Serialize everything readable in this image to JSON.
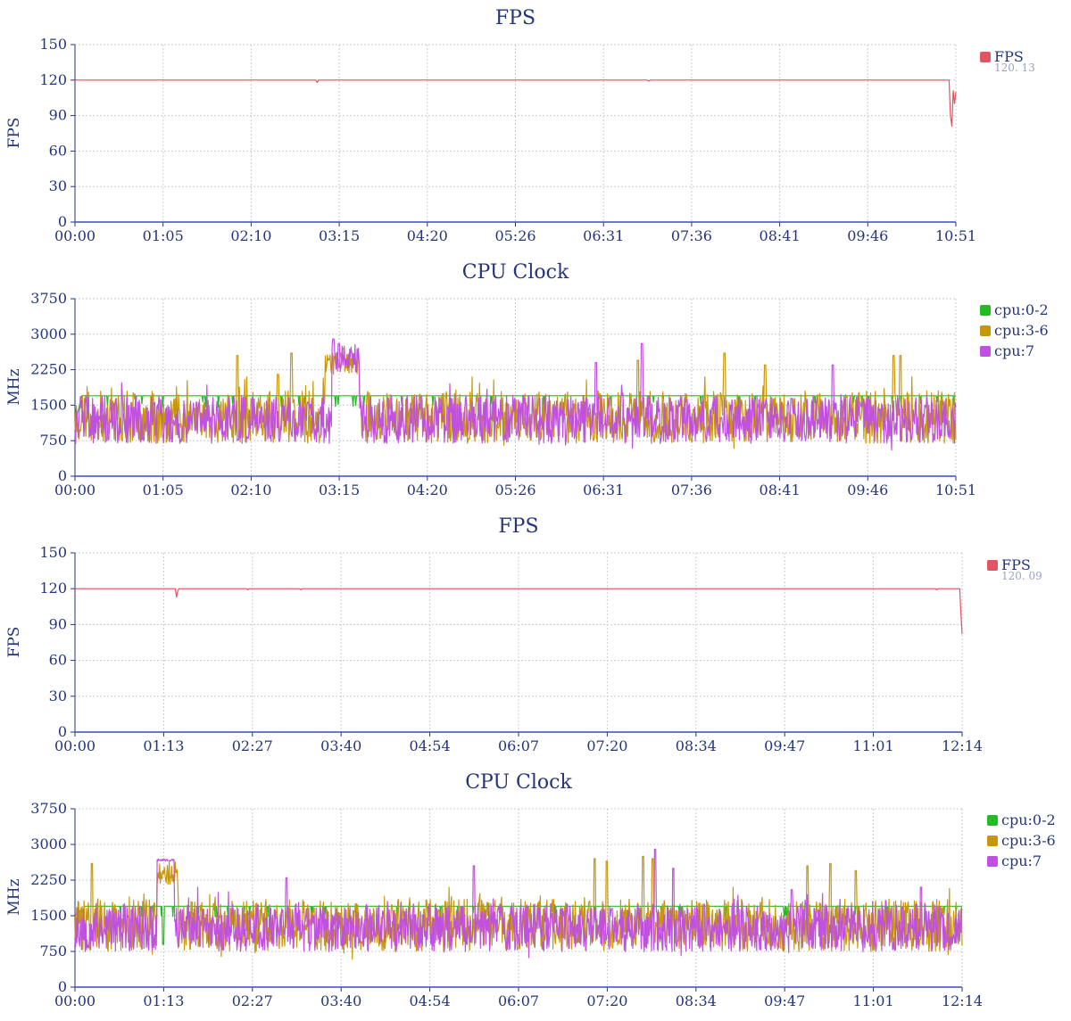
{
  "chart_data": [
    {
      "type": "line",
      "title": "FPS",
      "ylabel": "FPS",
      "ylim": [
        0,
        150
      ],
      "yticks": [
        0,
        30,
        60,
        90,
        120,
        150
      ],
      "xticks": [
        "00:00",
        "01:05",
        "02:10",
        "03:15",
        "04:20",
        "05:26",
        "06:31",
        "07:36",
        "08:41",
        "09:46",
        "10:51"
      ],
      "xmax_sec": 651,
      "grid": true,
      "legend": "right",
      "series": [
        {
          "name": "FPS",
          "color": "#e05561",
          "summary": "120. 13",
          "kind": "flat",
          "base": 120,
          "dips": [
            [
              179,
              118
            ],
            [
              424,
              119
            ]
          ],
          "tail": [
            [
              640,
              120
            ],
            [
              646,
              120
            ],
            [
              647,
              90
            ],
            [
              648,
              81
            ],
            [
              649,
              111
            ],
            [
              650,
              100
            ],
            [
              651,
              110
            ]
          ]
        }
      ]
    },
    {
      "type": "line",
      "title": "CPU Clock",
      "ylabel": "MHz",
      "ylim": [
        0,
        3750
      ],
      "yticks": [
        0,
        750,
        1500,
        2250,
        3000,
        3750
      ],
      "xticks": [
        "00:00",
        "01:05",
        "02:10",
        "03:15",
        "04:20",
        "05:26",
        "06:31",
        "07:36",
        "08:41",
        "09:46",
        "10:51"
      ],
      "xmax_sec": 651,
      "grid": true,
      "legend": "right",
      "series": [
        {
          "name": "cpu:0-2",
          "color": "#22bb22",
          "kind": "steady",
          "base": 1700,
          "dip": 1450,
          "seed": 11,
          "start": [
            [
              0,
              1100
            ],
            [
              5,
              1700
            ]
          ]
        },
        {
          "name": "cpu:3-6",
          "color": "#c8960a",
          "kind": "noise",
          "base": 1250,
          "amp": 650,
          "seed": 23,
          "spikes": [
            [
              120,
              2550
            ],
            [
              150,
              2150
            ],
            [
              160,
              2600
            ],
            [
              194,
              2500
            ],
            [
              198,
              2700
            ],
            [
              416,
              2450
            ],
            [
              480,
              2600
            ],
            [
              510,
              2350
            ],
            [
              605,
              2550
            ],
            [
              610,
              2550
            ]
          ],
          "plateaus": [
            [
              185,
              210,
              2150,
              2650
            ]
          ]
        },
        {
          "name": "cpu:7",
          "color": "#c050e0",
          "kind": "noise",
          "base": 1200,
          "amp": 600,
          "seed": 47,
          "spikes": [
            [
              191,
              2900
            ],
            [
              195,
              2800
            ],
            [
              385,
              2400
            ],
            [
              419,
              2800
            ],
            [
              560,
              2350
            ]
          ],
          "plateaus": [
            [
              190,
              210,
              2200,
              2800
            ]
          ]
        }
      ]
    },
    {
      "type": "line",
      "title": "FPS",
      "ylabel": "FPS",
      "ylim": [
        0,
        150
      ],
      "yticks": [
        0,
        30,
        60,
        90,
        120,
        150
      ],
      "xticks": [
        "00:00",
        "01:13",
        "02:27",
        "03:40",
        "04:54",
        "06:07",
        "07:20",
        "08:34",
        "09:47",
        "11:01",
        "12:14"
      ],
      "xmax_sec": 734,
      "grid": true,
      "legend": "right",
      "series": [
        {
          "name": "FPS",
          "color": "#e05561",
          "summary": "120. 09",
          "kind": "flat",
          "base": 120,
          "dips": [
            [
              84,
              113
            ],
            [
              85,
              118
            ],
            [
              143,
              119
            ],
            [
              187,
              119
            ],
            [
              713,
              119
            ]
          ],
          "tail": [
            [
              730,
              120
            ],
            [
              732,
              120
            ],
            [
              733,
              100
            ],
            [
              734,
              82
            ]
          ]
        }
      ]
    },
    {
      "type": "line",
      "title": "CPU Clock",
      "ylabel": "MHz",
      "ylim": [
        0,
        3750
      ],
      "yticks": [
        0,
        750,
        1500,
        2250,
        3000,
        3750
      ],
      "xticks": [
        "00:00",
        "01:13",
        "02:27",
        "03:40",
        "04:54",
        "06:07",
        "07:20",
        "08:34",
        "09:47",
        "11:01",
        "12:14"
      ],
      "xmax_sec": 734,
      "grid": true,
      "legend": "right",
      "series": [
        {
          "name": "cpu:0-2",
          "color": "#22bb22",
          "kind": "steady",
          "base": 1700,
          "dip": 1450,
          "seed": 13,
          "start": [
            [
              0,
              1150
            ],
            [
              8,
              1700
            ]
          ],
          "extra_dips": [
            [
              73,
              900
            ]
          ]
        },
        {
          "name": "cpu:3-6",
          "color": "#c8960a",
          "kind": "noise",
          "base": 1300,
          "amp": 650,
          "seed": 29,
          "spikes": [
            [
              14,
              2600
            ],
            [
              430,
              2700
            ],
            [
              440,
              2650
            ],
            [
              470,
              2750
            ],
            [
              478,
              2700
            ],
            [
              606,
              2550
            ],
            [
              625,
              2600
            ],
            [
              646,
              2450
            ]
          ],
          "plateaus": [
            [
              68,
              85,
              2150,
              2650
            ]
          ]
        },
        {
          "name": "cpu:7",
          "color": "#c050e0",
          "kind": "noise",
          "base": 1250,
          "amp": 600,
          "seed": 53,
          "spikes": [
            [
              175,
              2300
            ],
            [
              330,
              2550
            ],
            [
              480,
              2900
            ],
            [
              495,
              2500
            ],
            [
              593,
              2050
            ],
            [
              700,
              2100
            ]
          ],
          "plateaus": [
            [
              68,
              82,
              2650,
              2700
            ]
          ]
        }
      ]
    }
  ]
}
